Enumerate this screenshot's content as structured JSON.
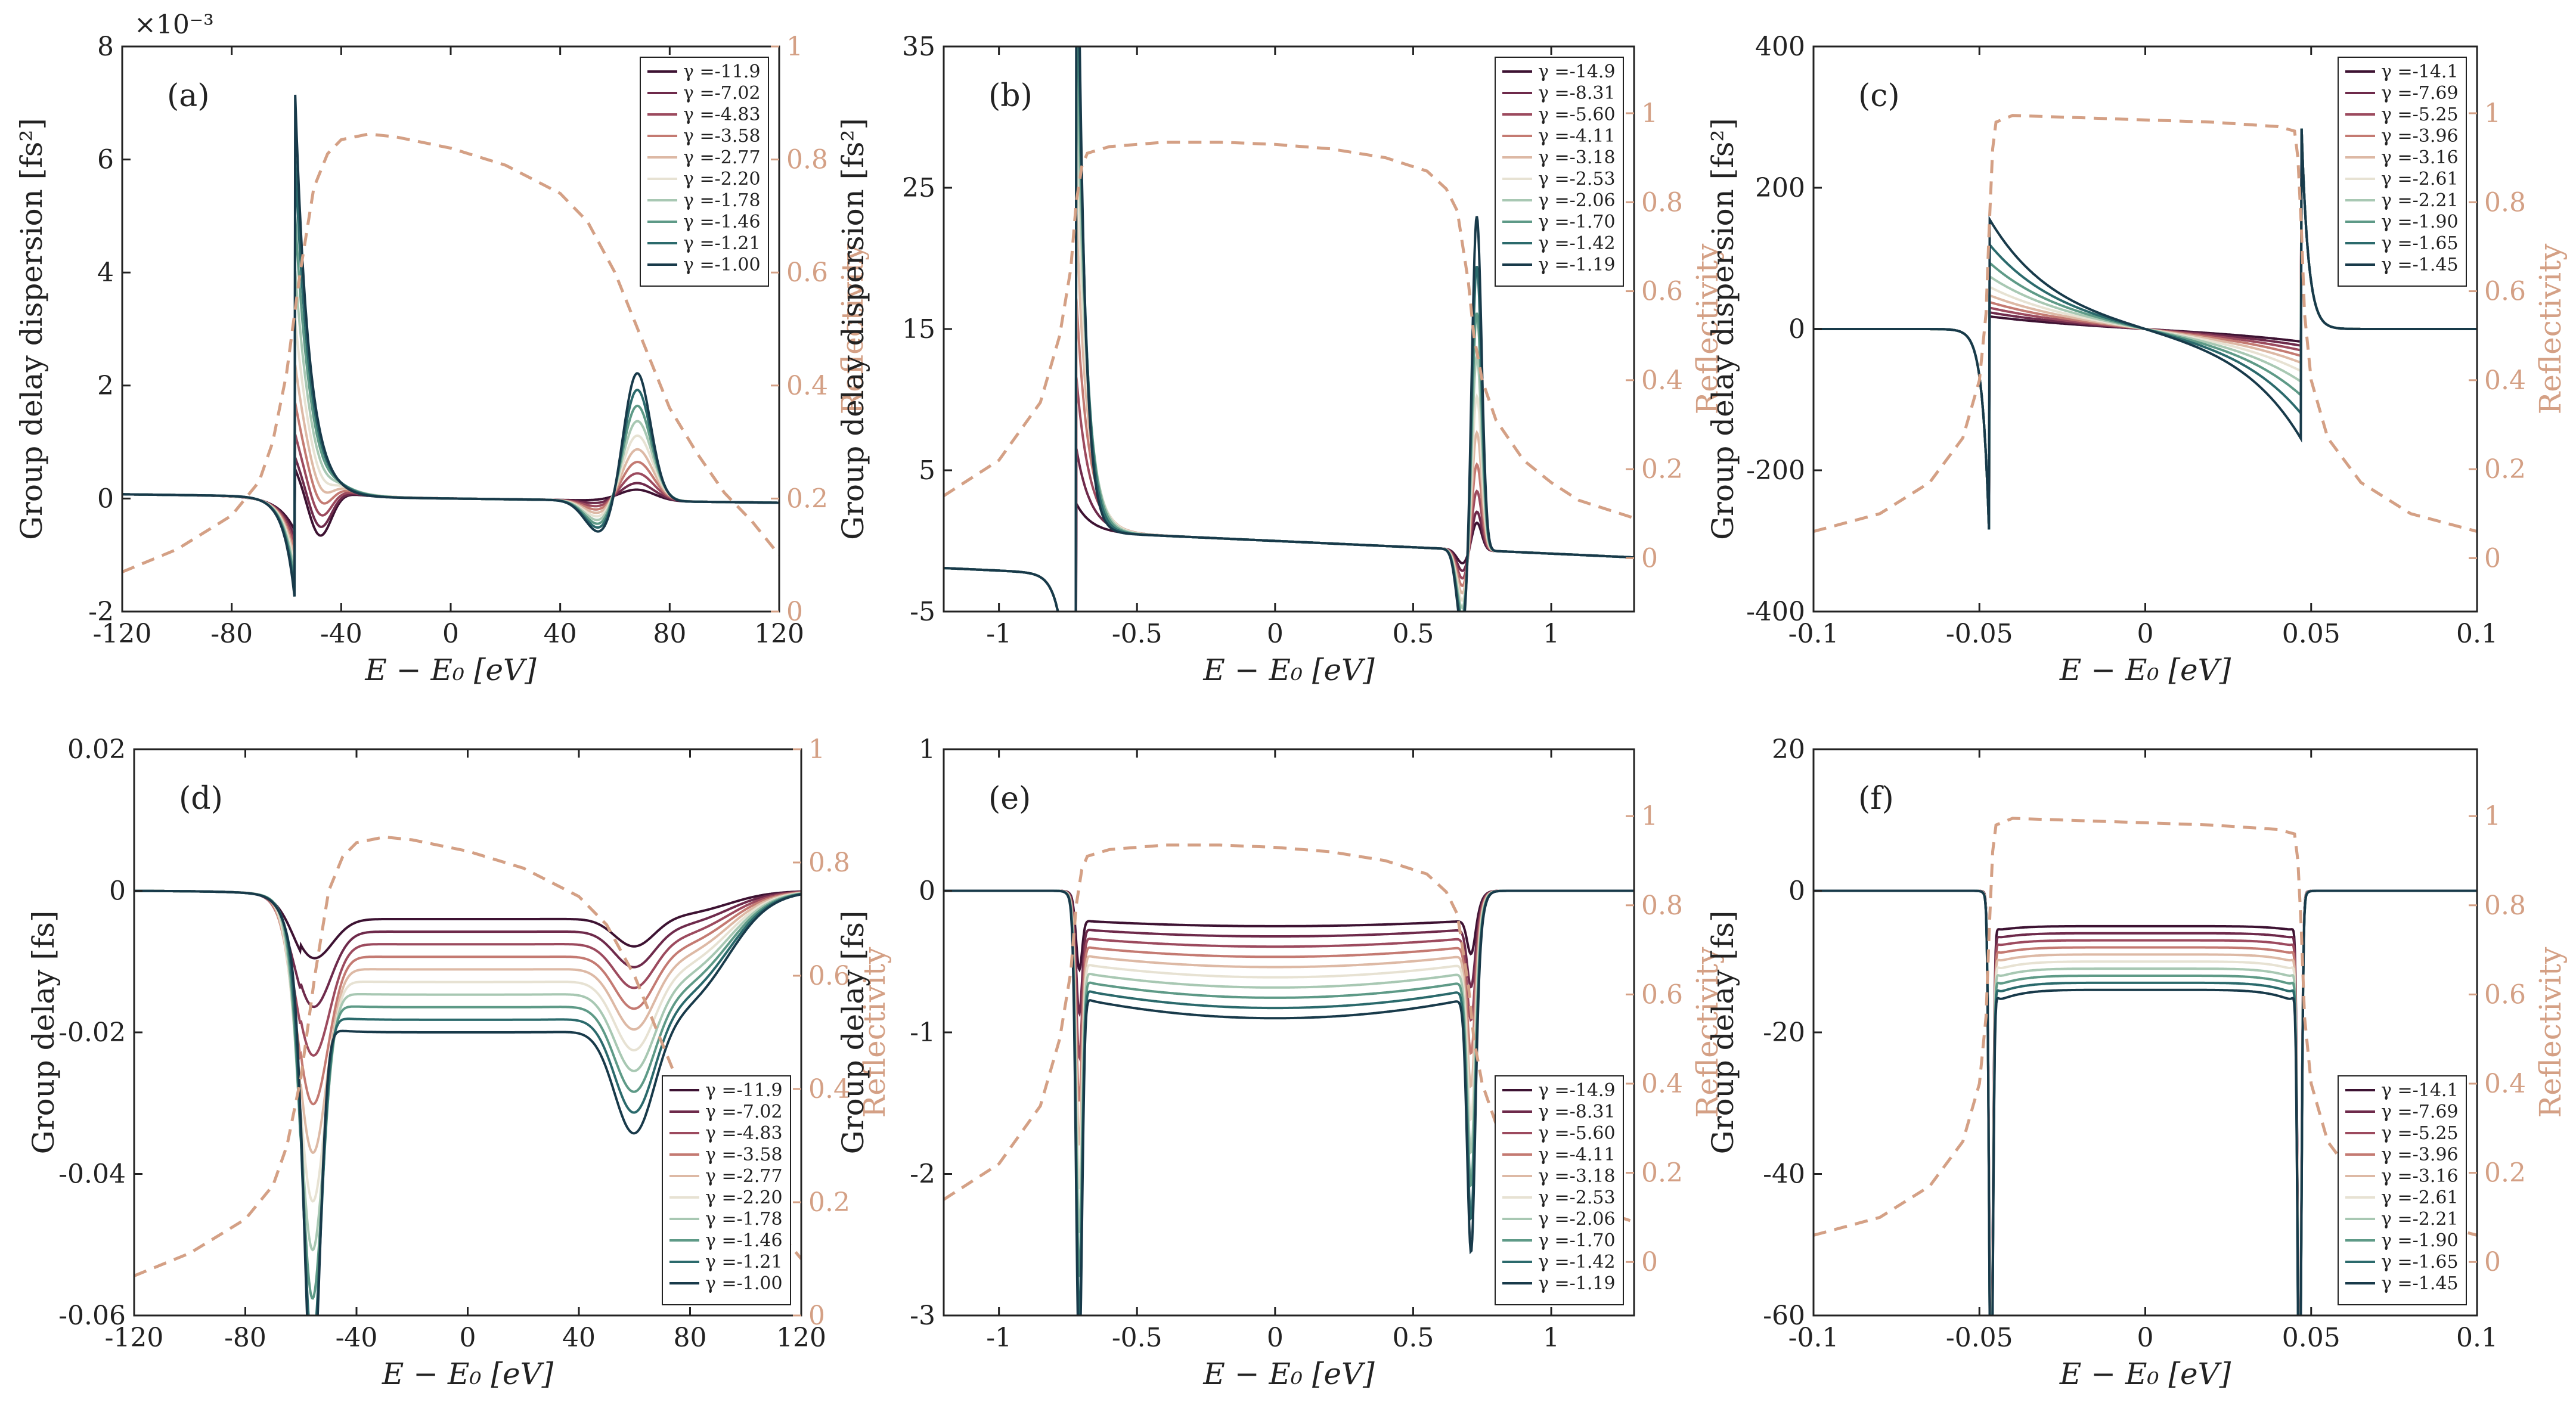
{
  "figure": {
    "right_axis_label": "Reflectivity",
    "reflectivity_color": "#d4a085",
    "series_colors": [
      "#3d1232",
      "#6e2a4b",
      "#9c4a5e",
      "#c47a72",
      "#ddb9a5",
      "#e7e2d3",
      "#a8c8b3",
      "#5e9a87",
      "#2b6a6c",
      "#183a4a"
    ]
  },
  "chart_data": [
    {
      "type": "line",
      "panel": "(a)",
      "ylabel": "Group delay dispersion [fs²]",
      "xlabel": "E − E₀ [eV]",
      "xlim": [
        -120,
        120
      ],
      "ylim": [
        -2,
        8
      ],
      "y_scale_note": "×10⁻³",
      "x_ticks": [
        "-120",
        "-80",
        "-40",
        "0",
        "40",
        "80",
        "120"
      ],
      "y_ticks": [
        "-2",
        "0",
        "2",
        "4",
        "6",
        "8"
      ],
      "y2_ticks": [
        "0",
        "0.2",
        "0.4",
        "0.6",
        "0.8",
        "1"
      ],
      "legend": [
        "γ =-11.9",
        "γ =-7.02",
        "γ =-4.83",
        "γ =-3.58",
        "γ =-2.77",
        "γ =-2.20",
        "γ =-1.78",
        "γ =-1.46",
        "γ =-1.21",
        "γ =-1.00"
      ],
      "legend_position": "top-right",
      "reflectivity": {
        "x": [
          -120,
          -100,
          -80,
          -70,
          -65,
          -60,
          -55,
          -50,
          -45,
          -40,
          -30,
          -20,
          0,
          20,
          40,
          50,
          60,
          70,
          80,
          90,
          100,
          110,
          120
        ],
        "y": [
          0.07,
          0.11,
          0.17,
          0.23,
          0.3,
          0.42,
          0.6,
          0.75,
          0.81,
          0.835,
          0.845,
          0.84,
          0.82,
          0.79,
          0.74,
          0.69,
          0.6,
          0.48,
          0.36,
          0.28,
          0.21,
          0.16,
          0.1
        ]
      }
    },
    {
      "type": "line",
      "panel": "(b)",
      "ylabel": "Group delay dispersion [fs²]",
      "xlabel": "E − E₀ [eV]",
      "xlim": [
        -1.2,
        1.3
      ],
      "ylim": [
        -5,
        35
      ],
      "x_ticks": [
        "-1",
        "-0.5",
        "0",
        "0.5",
        "1"
      ],
      "y_ticks": [
        "-5",
        "5",
        "15",
        "25",
        "35"
      ],
      "y2_ticks": [
        "0",
        "0.2",
        "0.4",
        "0.6",
        "0.8",
        "1"
      ],
      "legend": [
        "γ =-14.9",
        "γ =-8.31",
        "γ =-5.60",
        "γ =-4.11",
        "γ =-3.18",
        "γ =-2.53",
        "γ =-2.06",
        "γ =-1.70",
        "γ =-1.42",
        "γ =-1.19"
      ],
      "legend_position": "top-right",
      "reflectivity": {
        "x": [
          -1.2,
          -1.0,
          -0.85,
          -0.78,
          -0.74,
          -0.72,
          -0.7,
          -0.68,
          -0.6,
          -0.4,
          -0.2,
          0,
          0.2,
          0.4,
          0.55,
          0.62,
          0.66,
          0.68,
          0.7,
          0.72,
          0.75,
          0.8,
          0.9,
          1.0,
          1.1,
          1.3
        ],
        "y": [
          0.14,
          0.22,
          0.35,
          0.5,
          0.65,
          0.8,
          0.88,
          0.91,
          0.925,
          0.935,
          0.935,
          0.93,
          0.92,
          0.9,
          0.87,
          0.83,
          0.78,
          0.7,
          0.62,
          0.5,
          0.4,
          0.31,
          0.22,
          0.17,
          0.13,
          0.09
        ]
      }
    },
    {
      "type": "line",
      "panel": "(c)",
      "ylabel": "Group delay dispersion [fs²]",
      "xlabel": "E − E₀ [eV]",
      "xlim": [
        -0.1,
        0.1
      ],
      "ylim": [
        -400,
        400
      ],
      "x_ticks": [
        "-0.1",
        "-0.05",
        "0",
        "0.05",
        "0.1"
      ],
      "y_ticks": [
        "-400",
        "-200",
        "0",
        "200",
        "400"
      ],
      "y2_ticks": [
        "0",
        "0.2",
        "0.4",
        "0.6",
        "0.8",
        "1"
      ],
      "legend": [
        "γ =-14.1",
        "γ =-7.69",
        "γ =-5.25",
        "γ =-3.96",
        "γ =-3.16",
        "γ =-2.61",
        "γ =-2.21",
        "γ =-1.90",
        "γ =-1.65",
        "γ =-1.45"
      ],
      "legend_position": "top-right",
      "reflectivity": {
        "x": [
          -0.1,
          -0.08,
          -0.065,
          -0.055,
          -0.05,
          -0.048,
          -0.047,
          -0.046,
          -0.045,
          -0.04,
          -0.02,
          0,
          0.02,
          0.04,
          0.045,
          0.046,
          0.047,
          0.048,
          0.05,
          0.055,
          0.065,
          0.08,
          0.1
        ],
        "y": [
          0.06,
          0.1,
          0.17,
          0.27,
          0.4,
          0.55,
          0.75,
          0.92,
          0.98,
          0.995,
          0.99,
          0.985,
          0.98,
          0.97,
          0.96,
          0.9,
          0.75,
          0.55,
          0.4,
          0.27,
          0.17,
          0.1,
          0.06
        ]
      }
    },
    {
      "type": "line",
      "panel": "(d)",
      "ylabel": "Group delay [fs]",
      "xlabel": "E − E₀ [eV]",
      "xlim": [
        -120,
        120
      ],
      "ylim": [
        -0.06,
        0.02
      ],
      "x_ticks": [
        "-120",
        "-80",
        "-40",
        "0",
        "40",
        "80",
        "120"
      ],
      "y_ticks": [
        "-0.06",
        "-0.04",
        "-0.02",
        "0",
        "0.02"
      ],
      "y2_ticks": [
        "0",
        "0.2",
        "0.4",
        "0.6",
        "0.8",
        "1"
      ],
      "legend": [
        "γ =-11.9",
        "γ =-7.02",
        "γ =-4.83",
        "γ =-3.58",
        "γ =-2.77",
        "γ =-2.20",
        "γ =-1.78",
        "γ =-1.46",
        "γ =-1.21",
        "γ =-1.00"
      ],
      "legend_position": "bottom-right",
      "reflectivity": {
        "x": [
          -120,
          -100,
          -80,
          -70,
          -65,
          -60,
          -55,
          -50,
          -45,
          -40,
          -30,
          -20,
          0,
          20,
          40,
          50,
          60,
          70,
          80,
          90,
          100,
          110,
          120
        ],
        "y": [
          0.07,
          0.11,
          0.17,
          0.23,
          0.3,
          0.42,
          0.6,
          0.75,
          0.81,
          0.835,
          0.845,
          0.84,
          0.82,
          0.79,
          0.74,
          0.69,
          0.6,
          0.48,
          0.36,
          0.28,
          0.21,
          0.16,
          0.1
        ]
      }
    },
    {
      "type": "line",
      "panel": "(e)",
      "ylabel": "Group delay [fs]",
      "xlabel": "E − E₀ [eV]",
      "xlim": [
        -1.2,
        1.3
      ],
      "ylim": [
        -3,
        1
      ],
      "x_ticks": [
        "-1",
        "-0.5",
        "0",
        "0.5",
        "1"
      ],
      "y_ticks": [
        "-3",
        "-2",
        "-1",
        "0",
        "1"
      ],
      "y2_ticks": [
        "0",
        "0.2",
        "0.4",
        "0.6",
        "0.8",
        "1"
      ],
      "legend": [
        "γ =-14.9",
        "γ =-8.31",
        "γ =-5.60",
        "γ =-4.11",
        "γ =-3.18",
        "γ =-2.53",
        "γ =-2.06",
        "γ =-1.70",
        "γ =-1.42",
        "γ =-1.19"
      ],
      "legend_position": "bottom-right",
      "reflectivity": {
        "x": [
          -1.2,
          -1.0,
          -0.85,
          -0.78,
          -0.74,
          -0.72,
          -0.7,
          -0.68,
          -0.6,
          -0.4,
          -0.2,
          0,
          0.2,
          0.4,
          0.55,
          0.62,
          0.66,
          0.68,
          0.7,
          0.72,
          0.75,
          0.8,
          0.9,
          1.0,
          1.1,
          1.3
        ],
        "y": [
          0.14,
          0.22,
          0.35,
          0.5,
          0.65,
          0.8,
          0.88,
          0.91,
          0.925,
          0.935,
          0.935,
          0.93,
          0.92,
          0.9,
          0.87,
          0.83,
          0.78,
          0.7,
          0.62,
          0.5,
          0.4,
          0.31,
          0.22,
          0.17,
          0.13,
          0.09
        ]
      }
    },
    {
      "type": "line",
      "panel": "(f)",
      "ylabel": "Group delay [fs]",
      "xlabel": "E − E₀ [eV]",
      "xlim": [
        -0.1,
        0.1
      ],
      "ylim": [
        -60,
        20
      ],
      "x_ticks": [
        "-0.1",
        "-0.05",
        "0",
        "0.05",
        "0.1"
      ],
      "y_ticks": [
        "-60",
        "-40",
        "-20",
        "0",
        "20"
      ],
      "y2_ticks": [
        "0",
        "0.2",
        "0.4",
        "0.6",
        "0.8",
        "1"
      ],
      "legend": [
        "γ =-14.1",
        "γ =-7.69",
        "γ =-5.25",
        "γ =-3.96",
        "γ =-3.16",
        "γ =-2.61",
        "γ =-2.21",
        "γ =-1.90",
        "γ =-1.65",
        "γ =-1.45"
      ],
      "legend_position": "bottom-right",
      "reflectivity": {
        "x": [
          -0.1,
          -0.08,
          -0.065,
          -0.055,
          -0.05,
          -0.048,
          -0.047,
          -0.046,
          -0.045,
          -0.04,
          -0.02,
          0,
          0.02,
          0.04,
          0.045,
          0.046,
          0.047,
          0.048,
          0.05,
          0.055,
          0.065,
          0.08,
          0.1
        ],
        "y": [
          0.06,
          0.1,
          0.17,
          0.27,
          0.4,
          0.55,
          0.75,
          0.92,
          0.98,
          0.995,
          0.99,
          0.985,
          0.98,
          0.97,
          0.96,
          0.9,
          0.75,
          0.55,
          0.4,
          0.27,
          0.17,
          0.1,
          0.06
        ]
      }
    }
  ]
}
